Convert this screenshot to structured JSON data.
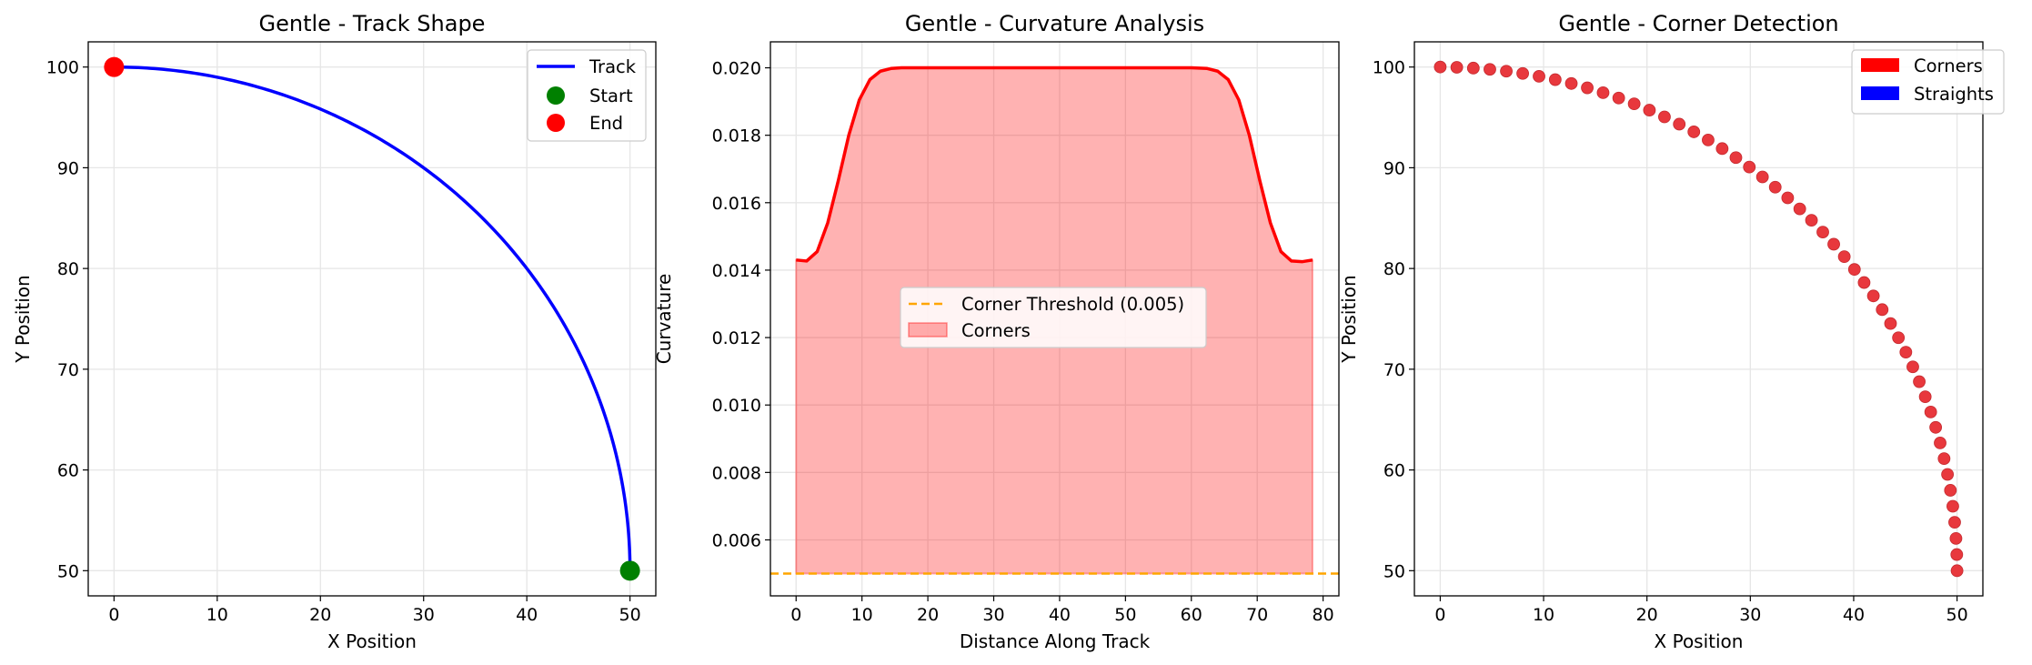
{
  "chart_data": [
    {
      "type": "line",
      "title": "Gentle - Track Shape",
      "xlabel": "X Position",
      "ylabel": "Y Position",
      "xlim": [
        -2.5,
        52.5
      ],
      "ylim": [
        47.5,
        102.5
      ],
      "xticks": [
        0,
        10,
        20,
        30,
        40,
        50
      ],
      "yticks": [
        50,
        60,
        70,
        80,
        90,
        100
      ],
      "grid": true,
      "legend_position": "top-right",
      "track": {
        "name": "Track",
        "color": "#0000ff",
        "arc": {
          "center": [
            0,
            50
          ],
          "radius": 50
        }
      },
      "markers": [
        {
          "name": "Start",
          "x": 50,
          "y": 50,
          "color": "#008000"
        },
        {
          "name": "End",
          "x": 0,
          "y": 100,
          "color": "#ff0000"
        }
      ]
    },
    {
      "type": "area",
      "title": "Gentle - Curvature Analysis",
      "xlabel": "Distance Along Track",
      "ylabel": "Curvature",
      "xlim": [
        -3.9,
        82.4
      ],
      "ylim": [
        0.00434,
        0.02077
      ],
      "xticks": [
        0,
        10,
        20,
        30,
        40,
        50,
        60,
        70,
        80
      ],
      "yticks": [
        0.006,
        0.008,
        0.01,
        0.012,
        0.014,
        0.016,
        0.018,
        0.02
      ],
      "ytick_labels": [
        "0.006",
        "0.008",
        "0.010",
        "0.012",
        "0.014",
        "0.016",
        "0.018",
        "0.020"
      ],
      "grid": true,
      "legend_position": "center",
      "threshold": {
        "name": "Corner Threshold (0.005)",
        "value": 0.005,
        "color": "#ffa500"
      },
      "fill": {
        "name": "Corners",
        "color": "#ff0000",
        "alpha": 0.3
      },
      "series": [
        {
          "name": "Curvature",
          "color": "#ff0000",
          "x": [
            0,
            1.6,
            3.2,
            4.8,
            6.4,
            8.0,
            9.6,
            11.2,
            12.8,
            14.4,
            16.0,
            17.6,
            20,
            30,
            40,
            50,
            60,
            62.4,
            64.0,
            65.6,
            67.2,
            68.8,
            70.4,
            72.0,
            73.6,
            75.2,
            76.8,
            78.4
          ],
          "y": [
            0.0143,
            0.01427,
            0.01455,
            0.0154,
            0.01665,
            0.018,
            0.01905,
            0.01965,
            0.0199,
            0.01998,
            0.02,
            0.02,
            0.02,
            0.02,
            0.02,
            0.02,
            0.02,
            0.01998,
            0.0199,
            0.01965,
            0.01905,
            0.018,
            0.01665,
            0.0154,
            0.01455,
            0.01427,
            0.01425,
            0.0143
          ]
        }
      ]
    },
    {
      "type": "scatter",
      "title": "Gentle - Corner Detection",
      "xlabel": "X Position",
      "ylabel": "Y Position",
      "xlim": [
        -2.5,
        52.5
      ],
      "ylim": [
        47.5,
        102.5
      ],
      "xticks": [
        0,
        10,
        20,
        30,
        40,
        50
      ],
      "yticks": [
        50,
        60,
        70,
        80,
        90,
        100
      ],
      "grid": true,
      "legend_position": "top-right",
      "legend": [
        {
          "name": "Corners",
          "color": "#ff0000"
        },
        {
          "name": "Straights",
          "color": "#0000ff"
        }
      ],
      "points": {
        "color": "#e8383d",
        "count": 50,
        "arc": {
          "center": [
            0,
            50
          ],
          "radius": 50
        }
      }
    }
  ],
  "colors": {
    "grid": "#e6e6e6",
    "axes": "#000000"
  }
}
